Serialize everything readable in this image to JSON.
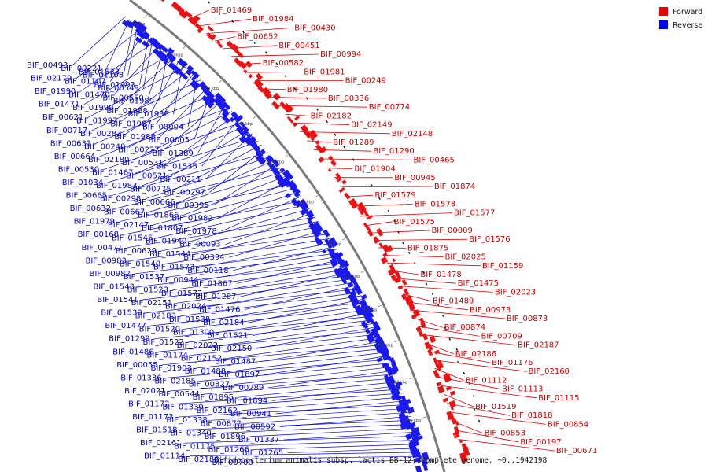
{
  "caption": "Bifidobacterium animalis subsp. lactis BB-12, complete genome, ~0..1942198",
  "legend": [
    {
      "label": "Forward",
      "color": "#ee0000"
    },
    {
      "label": "Reverse",
      "color": "#0000ee"
    }
  ],
  "ticks": [
    "180 kbp",
    "200 kbp",
    "220 kbp",
    "240 kbp",
    "260 kbp",
    "280 kbp",
    "300 kbp",
    "320 kbp",
    "340 kbp",
    "360 kbp",
    "380 kbp",
    "400 kbp",
    "420 kbp"
  ],
  "forward_labels": [
    "BIF_01469",
    "BIF_01984",
    "BIF_00430",
    "BIF_00652",
    "BIF_00451",
    "BIF_00994",
    "BIF_00582",
    "BIF_01981",
    "BIF_00249",
    "BIF_01980",
    "BIF_00336",
    "BIF_00774",
    "BIF_02182",
    "BIF_02149",
    "BIF_02148",
    "BIF_01289",
    "BIF_01290",
    "BIF_00465",
    "BIF_01904",
    "BIF_00945",
    "BIF_01874",
    "BIF_01579",
    "BIF_01578",
    "BIF_01577",
    "BIF_01575",
    "BIF_00009",
    "BIF_01576",
    "BIF_01875",
    "BIF_02025",
    "BIF_01159",
    "BIF_01478",
    "BIF_01475",
    "BIF_02023",
    "BIF_01489",
    "BIF_00973",
    "BIF_00873",
    "BIF_00874",
    "BIF_00709",
    "BIF_02187",
    "BIF_02186",
    "BIF_01176",
    "BIF_02160",
    "BIF_01112",
    "BIF_01113",
    "BIF_01115",
    "BIF_01519",
    "BIF_01818",
    "BIF_00854",
    "BIF_00853",
    "BIF_00197",
    "BIF_00671"
  ],
  "reverse_labels": [
    "BIF_00493",
    "BIF_00221",
    "BIF_01533",
    "BIF_01108",
    "BIF_02179",
    "BIF_01107",
    "BIF_01993",
    "BIF_00549",
    "BIF_01990",
    "BIF_01470",
    "BIF_00550",
    "BIF_01989",
    "BIF_01471",
    "BIF_01999",
    "BIF_01988",
    "BIF_01936",
    "BIF_00621",
    "BIF_01997",
    "BIF_01987",
    "BIF_00004",
    "BIF_00717",
    "BIF_00283",
    "BIF_01985",
    "BIF_00005",
    "BIF_00631",
    "BIF_00248",
    "BIF_00227",
    "BIF_01389",
    "BIF_00664",
    "BIF_02180",
    "BIF_00531",
    "BIF_01535",
    "BIF_00530",
    "BIF_01467",
    "BIF_00521",
    "BIF_00211",
    "BIF_01034",
    "BIF_01983",
    "BIF_00775",
    "BIF_00297",
    "BIF_00665",
    "BIF_00298",
    "BIF_00666",
    "BIF_00395",
    "BIF_00632",
    "BIF_00667",
    "BIF_01866",
    "BIF_01982",
    "BIF_01979",
    "BIF_02147",
    "BIF_01807",
    "BIF_01978",
    "BIF_00168",
    "BIF_01545",
    "BIF_01940",
    "BIF_00093",
    "BIF_00471",
    "BIF_00629",
    "BIF_01544",
    "BIF_00394",
    "BIF_00983",
    "BIF_01540",
    "BIF_01573",
    "BIF_00118",
    "BIF_00982",
    "BIF_01537",
    "BIF_00944",
    "BIF_01867",
    "BIF_01543",
    "BIF_01523",
    "BIF_01572",
    "BIF_01287",
    "BIF_01541",
    "BIF_02151",
    "BIF_02024",
    "BIF_01476",
    "BIF_01539",
    "BIF_02183",
    "BIF_01538",
    "BIF_02184",
    "BIF_01477",
    "BIF_01520",
    "BIF_01300",
    "BIF_01521",
    "BIF_01299",
    "BIF_01522",
    "BIF_02022",
    "BIF_02150",
    "BIF_01486",
    "BIF_01174",
    "BIF_02152",
    "BIF_01487",
    "BIF_00055",
    "BIF_01903",
    "BIF_01488",
    "BIF_01897",
    "BIF_01336",
    "BIF_02185",
    "BIF_00327",
    "BIF_00289",
    "BIF_02021",
    "BIF_00544",
    "BIF_01895",
    "BIF_01894",
    "BIF_01172",
    "BIF_01339",
    "BIF_02162",
    "BIF_00941",
    "BIF_01173",
    "BIF_01338",
    "BIF_00872",
    "BIF_00592",
    "BIF_01518",
    "BIF_01340",
    "BIF_01896",
    "BIF_01337",
    "BIF_02161",
    "BIF_01175",
    "BIF_01266",
    "BIF_01265",
    "BIF_01114",
    "BIF_02188",
    "BIF_00700"
  ]
}
